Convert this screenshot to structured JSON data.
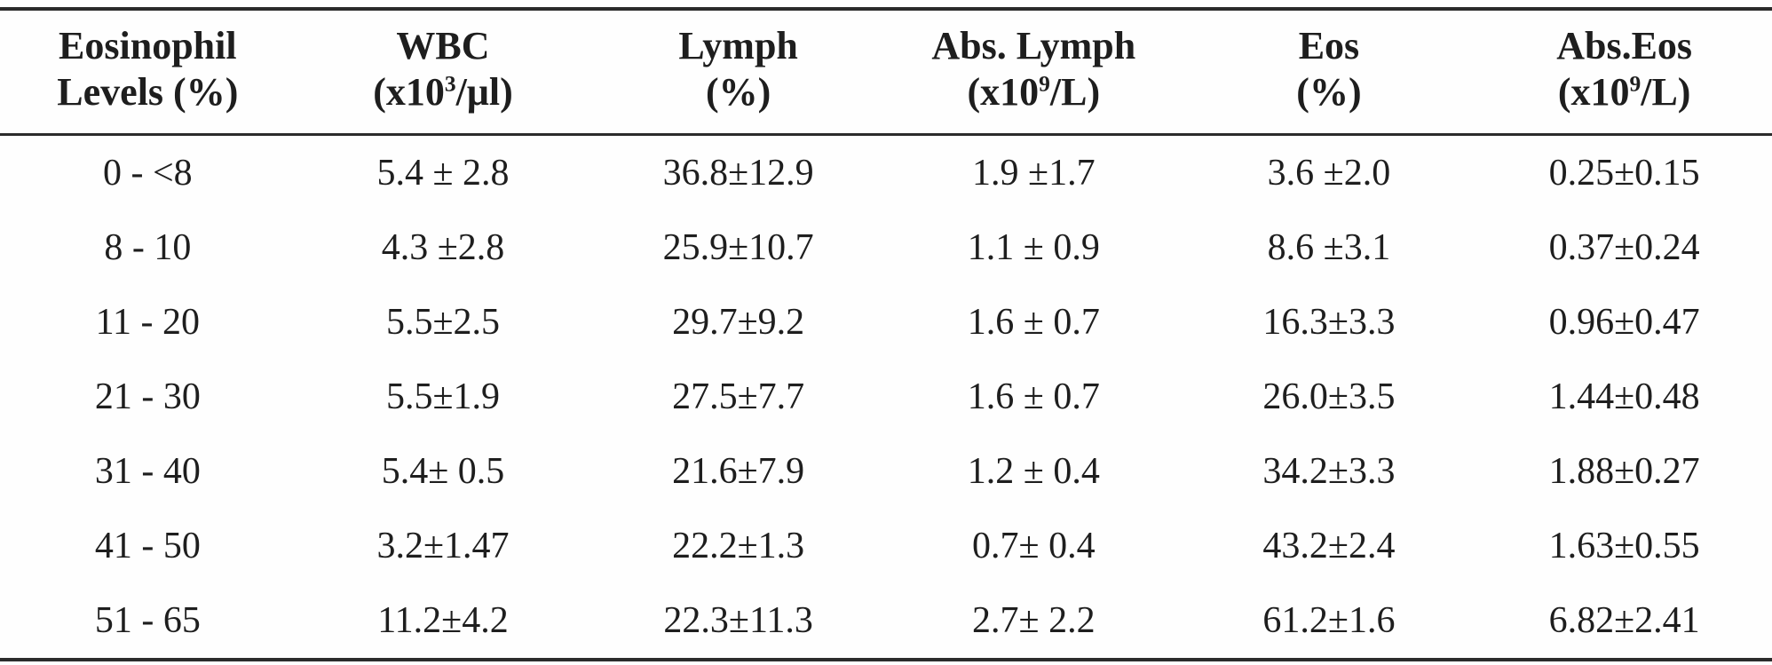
{
  "table": {
    "columns": [
      {
        "id": "eosinophil-levels",
        "line1": "Eosinophil",
        "unit_pre": "Levels (%)",
        "unit_sup": "",
        "unit_post": ""
      },
      {
        "id": "wbc",
        "line1": "WBC",
        "unit_pre": "(x10",
        "unit_sup": "3",
        "unit_post": "/μl)"
      },
      {
        "id": "lymph",
        "line1": "Lymph",
        "unit_pre": "(%)",
        "unit_sup": "",
        "unit_post": ""
      },
      {
        "id": "abs-lymph",
        "line1": "Abs. Lymph",
        "unit_pre": "(x10",
        "unit_sup": "9",
        "unit_post": "/L)"
      },
      {
        "id": "eos",
        "line1": "Eos",
        "unit_pre": "(%)",
        "unit_sup": "",
        "unit_post": ""
      },
      {
        "id": "abs-eos",
        "line1": "Abs.Eos",
        "unit_pre": "(x10",
        "unit_sup": "9",
        "unit_post": "/L)"
      }
    ],
    "rows": [
      [
        "0 - <8",
        "5.4 ± 2.8",
        "36.8±12.9",
        "1.9 ±1.7",
        "3.6 ±2.0",
        "0.25±0.15"
      ],
      [
        "8 - 10",
        "4.3 ±2.8",
        "25.9±10.7",
        "1.1 ± 0.9",
        "8.6 ±3.1",
        "0.37±0.24"
      ],
      [
        "11 - 20",
        "5.5±2.5",
        "29.7±9.2",
        "1.6 ± 0.7",
        "16.3±3.3",
        "0.96±0.47"
      ],
      [
        "21 - 30",
        "5.5±1.9",
        "27.5±7.7",
        "1.6 ± 0.7",
        "26.0±3.5",
        "1.44±0.48"
      ],
      [
        "31 - 40",
        "5.4± 0.5",
        "21.6±7.9",
        "1.2 ± 0.4",
        "34.2±3.3",
        "1.88±0.27"
      ],
      [
        "41 - 50",
        "3.2±1.47",
        "22.2±1.3",
        "0.7± 0.4",
        "43.2±2.4",
        "1.63±0.55"
      ],
      [
        "51 - 65",
        "11.2±4.2",
        "22.3±11.3",
        "2.7± 2.2",
        "61.2±1.6",
        "6.82±2.41"
      ]
    ]
  },
  "colors": {
    "text": "#1e1e1e",
    "rule": "#2b2b2b",
    "background": "#fefefe"
  }
}
